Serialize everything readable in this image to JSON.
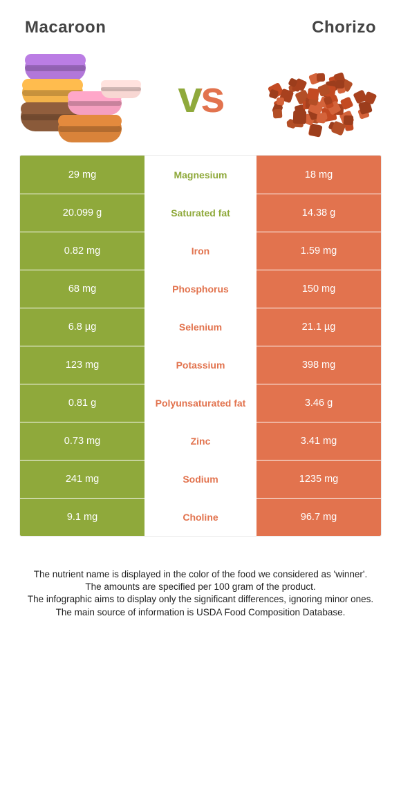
{
  "colors": {
    "left": "#8fa93b",
    "right": "#e2734e",
    "mid_bg": "#ffffff",
    "row_text": "#ffffff",
    "border": "#e9e9e9",
    "title": "#444444",
    "footer": "#222222",
    "vs_left": "#8fa93b",
    "vs_right": "#e2734e"
  },
  "titles": {
    "left": "Macaroon",
    "right": "Chorizo",
    "vs": "vs"
  },
  "images": {
    "macaroon_colors": [
      "#b277d9",
      "#f3b34a",
      "#f59fbf",
      "#8a5a3a",
      "#d9833a",
      "#f8d7d3",
      "#e9c6c0"
    ],
    "chorizo_colors": [
      "#c34a22",
      "#a8411e",
      "#d4633a",
      "#b34e26",
      "#9c3d1c"
    ]
  },
  "rows": [
    {
      "left": "29 mg",
      "label": "Magnesium",
      "right": "18 mg",
      "winner": "left"
    },
    {
      "left": "20.099 g",
      "label": "Saturated fat",
      "right": "14.38 g",
      "winner": "left"
    },
    {
      "left": "0.82 mg",
      "label": "Iron",
      "right": "1.59 mg",
      "winner": "right"
    },
    {
      "left": "68 mg",
      "label": "Phosphorus",
      "right": "150 mg",
      "winner": "right"
    },
    {
      "left": "6.8 µg",
      "label": "Selenium",
      "right": "21.1 µg",
      "winner": "right"
    },
    {
      "left": "123 mg",
      "label": "Potassium",
      "right": "398 mg",
      "winner": "right"
    },
    {
      "left": "0.81 g",
      "label": "Polyunsaturated fat",
      "right": "3.46 g",
      "winner": "right"
    },
    {
      "left": "0.73 mg",
      "label": "Zinc",
      "right": "3.41 mg",
      "winner": "right"
    },
    {
      "left": "241 mg",
      "label": "Sodium",
      "right": "1235 mg",
      "winner": "right"
    },
    {
      "left": "9.1 mg",
      "label": "Choline",
      "right": "96.7 mg",
      "winner": "right"
    }
  ],
  "footer": [
    "The nutrient name is displayed in the color of the food we considered as 'winner'.",
    "The amounts are specified per 100 gram of the product.",
    "The infographic aims to display only the significant differences, ignoring minor ones.",
    "The main source of information is USDA Food Composition Database."
  ]
}
